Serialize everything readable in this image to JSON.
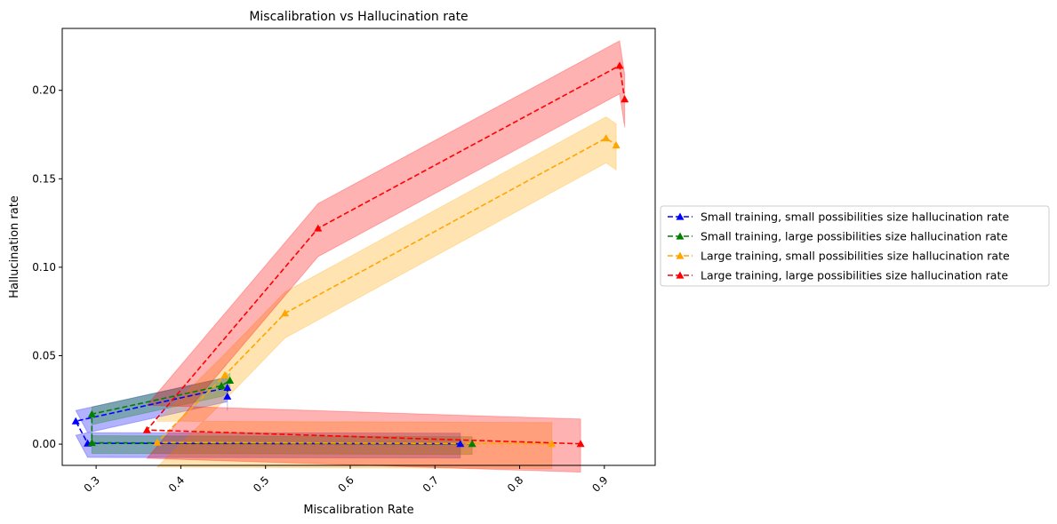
{
  "chart_data": {
    "type": "line",
    "title": "Miscalibration vs Hallucination rate",
    "xlabel": "Miscalibration Rate",
    "ylabel": "Hallucination rate",
    "xlim": [
      0.26,
      0.96
    ],
    "ylim": [
      -0.012,
      0.235
    ],
    "x_ticks": [
      0.3,
      0.4,
      0.5,
      0.6,
      0.7,
      0.8,
      0.9
    ],
    "x_tick_labels": [
      "0.3",
      "0.4",
      "0.5",
      "0.6",
      "0.7",
      "0.8",
      "0.9"
    ],
    "y_ticks": [
      0.0,
      0.05,
      0.1,
      0.15,
      0.2
    ],
    "y_tick_labels": [
      "0.00",
      "0.05",
      "0.10",
      "0.15",
      "0.20"
    ],
    "grid": false,
    "legend_position": "outside-right",
    "series": [
      {
        "name": "Small training, small possibilities size hallucination rate",
        "color": "#0000ff",
        "marker": "triangle",
        "linestyle": "dashed",
        "x": [
          0.73,
          0.29,
          0.276,
          0.455,
          0.455
        ],
        "y": [
          0.0002,
          0.0005,
          0.013,
          0.032,
          0.027
        ],
        "band": [
          0.0,
          0.006
        ]
      },
      {
        "name": "Small training, large possibilities size hallucination rate",
        "color": "#008000",
        "marker": "triangle",
        "linestyle": "dashed",
        "x": [
          0.744,
          0.295,
          0.295,
          0.448,
          0.458
        ],
        "y": [
          0.0002,
          0.0008,
          0.017,
          0.033,
          0.036
        ],
        "band": [
          0.0,
          0.004
        ]
      },
      {
        "name": "Large training, small possibilities size hallucination rate",
        "color": "#ffa500",
        "marker": "triangle",
        "linestyle": "dashed",
        "x": [
          0.838,
          0.372,
          0.452,
          0.523,
          0.902,
          0.914
        ],
        "y": [
          0.0002,
          0.001,
          0.039,
          0.074,
          0.173,
          0.169
        ],
        "band": [
          0.0,
          0.012
        ]
      },
      {
        "name": "Large training, large possibilities size hallucination rate",
        "color": "#ff0000",
        "marker": "triangle",
        "linestyle": "dashed",
        "x": [
          0.872,
          0.36,
          0.562,
          0.918,
          0.924
        ],
        "y": [
          0.0002,
          0.008,
          0.122,
          0.214,
          0.195
        ],
        "band": [
          0.0,
          0.014
        ]
      }
    ]
  }
}
